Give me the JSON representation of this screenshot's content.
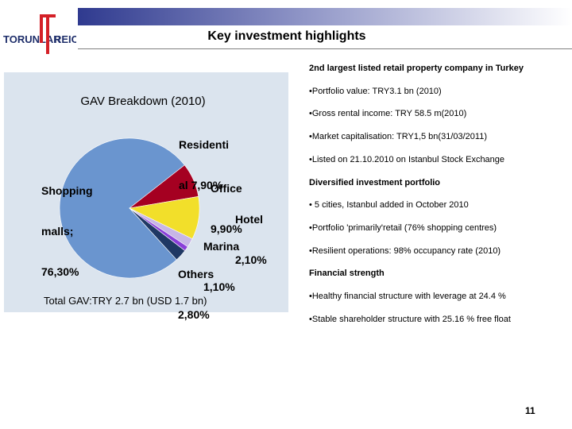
{
  "logo": {
    "text_left": "TORUNLAR",
    "text_right": "REIC"
  },
  "header": {
    "title": "Key investment highlights"
  },
  "chart_data": {
    "type": "pie",
    "title": "GAV Breakdown (2010)",
    "categories": [
      "Shopping malls;",
      "Residential",
      "Office",
      "Hotel",
      "Marina",
      "Others"
    ],
    "values": [
      76.3,
      7.9,
      9.9,
      2.1,
      1.1,
      2.8
    ],
    "value_labels": [
      "76,30%",
      "7,90%",
      "9,90%",
      "2,10%",
      "1,10%",
      "2,80%"
    ],
    "colors": [
      "#6a95cf",
      "#a50021",
      "#f2df2a",
      "#c7b6e6",
      "#8a3fd9",
      "#1f3864"
    ],
    "label_lines": {
      "shopping": [
        "Shopping",
        "malls;",
        "76,30%"
      ],
      "residential": [
        "Residenti",
        "al 7,90%"
      ],
      "office": [
        "Office",
        "9,90%"
      ],
      "hotel": [
        "Hotel",
        "2,10%"
      ],
      "marina": [
        "Marina",
        "1,10%"
      ],
      "others": [
        "Others",
        "2,80%"
      ]
    },
    "footnote": "Total GAV:TRY  2.7 bn (USD 1.7 bn)"
  },
  "highlights": [
    {
      "text": "2nd largest listed retail property company in Turkey",
      "heading": true
    },
    {
      "text": "•Portfolio value: TRY3.1 bn (2010)",
      "heading": false
    },
    {
      "text": "•Gross rental income: TRY  58.5 m(2010)",
      "heading": false
    },
    {
      "text": "•Market capitalisation: TRY1,5 bn(31/03/2011)",
      "heading": false
    },
    {
      "text": "•Listed on 21.10.2010 on Istanbul Stock Exchange",
      "heading": false
    },
    {
      "text": "Diversified investment portfolio",
      "heading": true
    },
    {
      "text": "• 5 cities, Istanbul added in October 2010",
      "heading": false
    },
    {
      "text": "•Portfolio 'primarily'retail (76% shopping centres)",
      "heading": false
    },
    {
      "text": "•Resilient operations:  98% occupancy rate (2010)",
      "heading": false
    },
    {
      "text": "Financial strength",
      "heading": true
    },
    {
      "text": "•Healthy financial structure with leverage at 24.4 %",
      "heading": false
    },
    {
      "text": "•Stable shareholder structure with 25.16 % free float",
      "heading": false
    }
  ],
  "footer": {
    "page_number": "11"
  }
}
